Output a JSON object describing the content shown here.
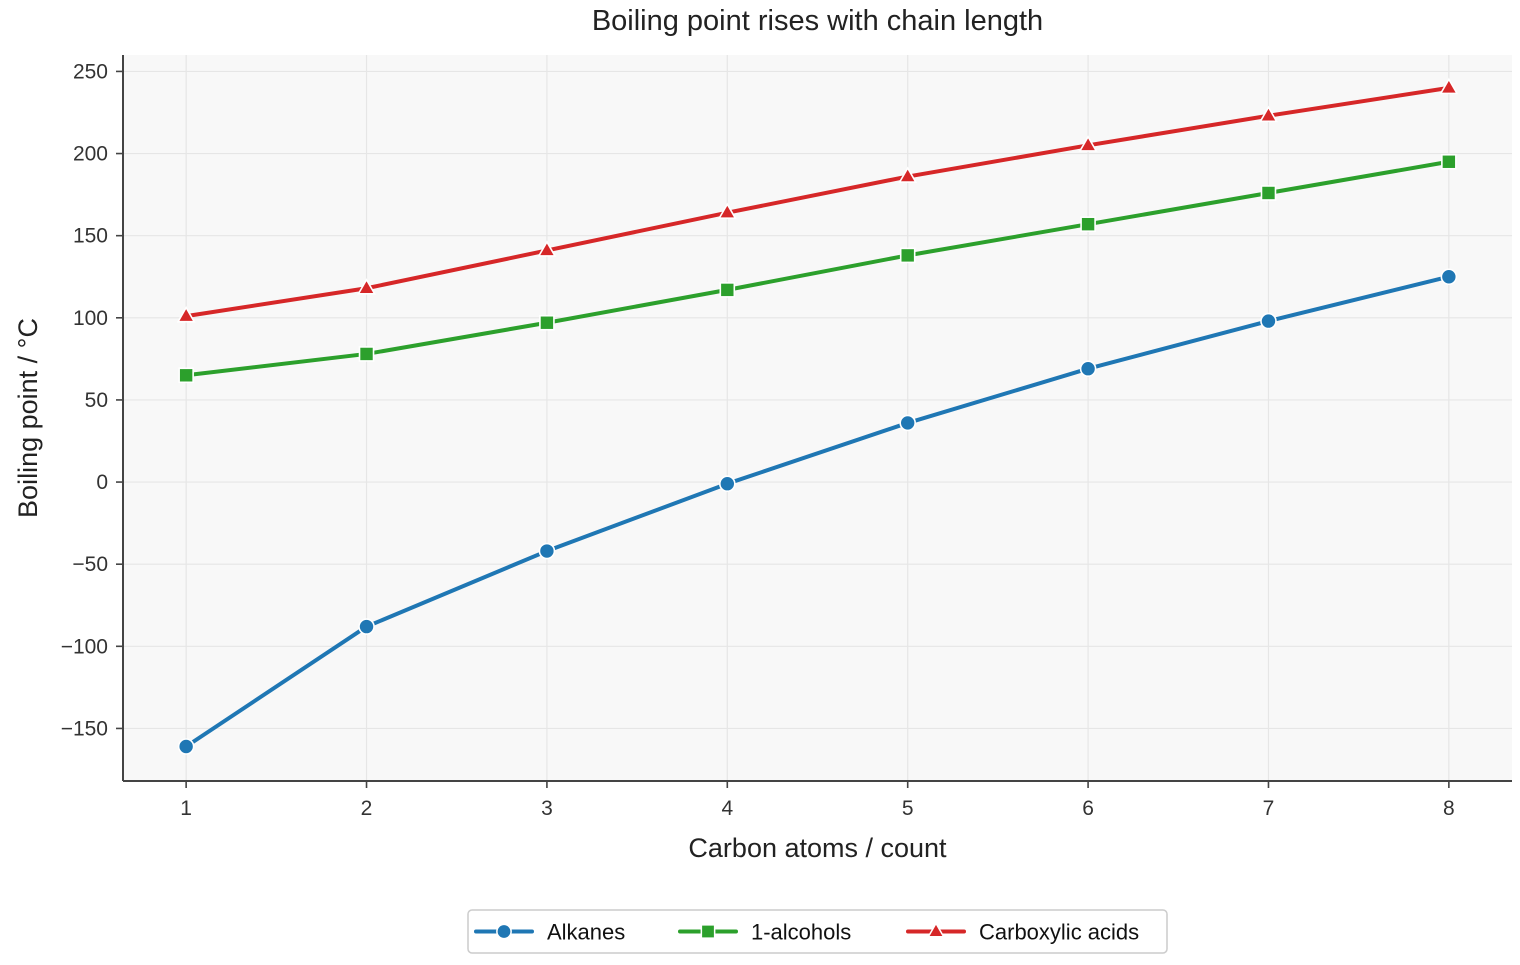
{
  "chart_data": {
    "type": "line",
    "title": "Boiling point rises with chain length",
    "xlabel": "Carbon atoms / count",
    "ylabel": "Boiling point / °C",
    "x": [
      1,
      2,
      3,
      4,
      5,
      6,
      7,
      8
    ],
    "xlim": [
      0.65,
      8.35
    ],
    "ylim": [
      -182,
      260
    ],
    "xticks": [
      1,
      2,
      3,
      4,
      5,
      6,
      7,
      8
    ],
    "xtick_labels": [
      "1",
      "2",
      "3",
      "4",
      "5",
      "6",
      "7",
      "8"
    ],
    "yticks": [
      -150,
      -100,
      -50,
      0,
      50,
      100,
      150,
      200,
      250
    ],
    "ytick_labels": [
      "−150",
      "−100",
      "−50",
      "0",
      "50",
      "100",
      "150",
      "200",
      "250"
    ],
    "grid": true,
    "legend_position": "bottom-center",
    "series": [
      {
        "name": "Alkanes",
        "color": "#1f77b4",
        "marker": "circle",
        "values": [
          -161,
          -88,
          -42,
          -1,
          36,
          69,
          98,
          125
        ]
      },
      {
        "name": "1-alcohols",
        "color": "#2ca02c",
        "marker": "square",
        "values": [
          65,
          78,
          97,
          117,
          138,
          157,
          176,
          195
        ]
      },
      {
        "name": "Carboxylic acids",
        "color": "#d62728",
        "marker": "triangle",
        "values": [
          101,
          118,
          141,
          164,
          186,
          205,
          223,
          240
        ]
      }
    ],
    "colors": {
      "plot_background": "#f8f8f8",
      "grid": "#e6e6e6",
      "axis": "#444444"
    }
  }
}
